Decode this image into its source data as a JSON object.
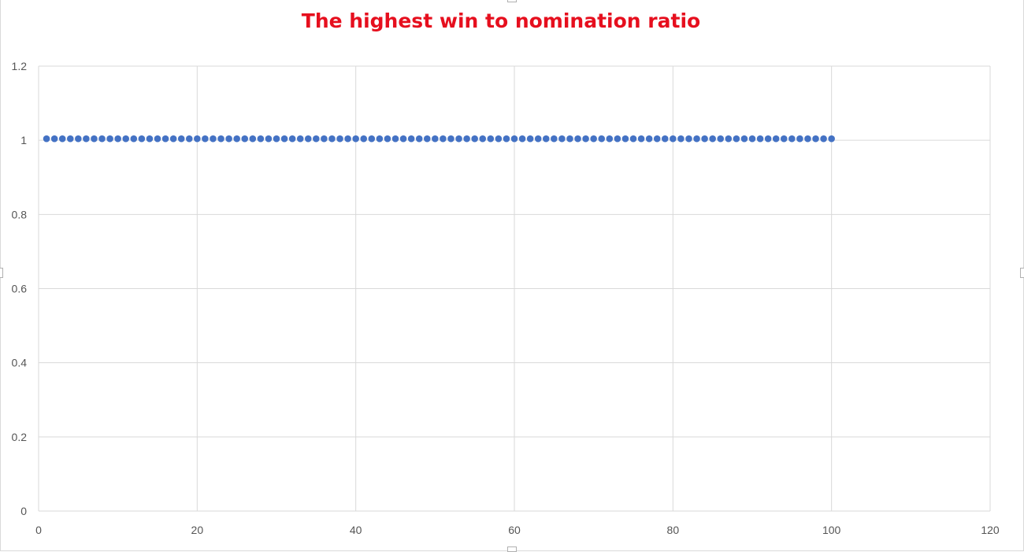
{
  "chart_data": {
    "type": "scatter",
    "title": "The highest win to nomination ratio",
    "xlabel": "",
    "ylabel": "",
    "xlim": [
      0,
      120
    ],
    "ylim": [
      0,
      1.2
    ],
    "x_ticks": [
      0,
      20,
      40,
      60,
      80,
      100,
      120
    ],
    "y_ticks": [
      0,
      0.2,
      0.4,
      0.6,
      0.8,
      1,
      1.2
    ],
    "x_tick_labels": [
      "0",
      "20",
      "40",
      "60",
      "80",
      "100",
      "120"
    ],
    "y_tick_labels": [
      "0",
      "0.2",
      "0.4",
      "0.6",
      "0.8",
      "1",
      "1.2"
    ],
    "grid": true,
    "legend": "none",
    "series": [
      {
        "color": "#4472c4",
        "x": [
          1,
          2,
          3,
          4,
          5,
          6,
          7,
          8,
          9,
          10,
          11,
          12,
          13,
          14,
          15,
          16,
          17,
          18,
          19,
          20,
          21,
          22,
          23,
          24,
          25,
          26,
          27,
          28,
          29,
          30,
          31,
          32,
          33,
          34,
          35,
          36,
          37,
          38,
          39,
          40,
          41,
          42,
          43,
          44,
          45,
          46,
          47,
          48,
          49,
          50,
          51,
          52,
          53,
          54,
          55,
          56,
          57,
          58,
          59,
          60,
          61,
          62,
          63,
          64,
          65,
          66,
          67,
          68,
          69,
          70,
          71,
          72,
          73,
          74,
          75,
          76,
          77,
          78,
          79,
          80,
          81,
          82,
          83,
          84,
          85,
          86,
          87,
          88,
          89,
          90,
          91,
          92,
          93,
          94,
          95,
          96,
          97,
          98,
          99,
          100
        ],
        "y": [
          1,
          1,
          1,
          1,
          1,
          1,
          1,
          1,
          1,
          1,
          1,
          1,
          1,
          1,
          1,
          1,
          1,
          1,
          1,
          1,
          1,
          1,
          1,
          1,
          1,
          1,
          1,
          1,
          1,
          1,
          1,
          1,
          1,
          1,
          1,
          1,
          1,
          1,
          1,
          1,
          1,
          1,
          1,
          1,
          1,
          1,
          1,
          1,
          1,
          1,
          1,
          1,
          1,
          1,
          1,
          1,
          1,
          1,
          1,
          1,
          1,
          1,
          1,
          1,
          1,
          1,
          1,
          1,
          1,
          1,
          1,
          1,
          1,
          1,
          1,
          1,
          1,
          1,
          1,
          1,
          1,
          1,
          1,
          1,
          1,
          1,
          1,
          1,
          1,
          1,
          1,
          1,
          1,
          1,
          1,
          1,
          1,
          1,
          1,
          1
        ]
      }
    ],
    "colors": {
      "title": "#e60f1e",
      "grid": "#d9d9d9",
      "marker": "#4472c4",
      "tick_text": "#555555"
    }
  }
}
